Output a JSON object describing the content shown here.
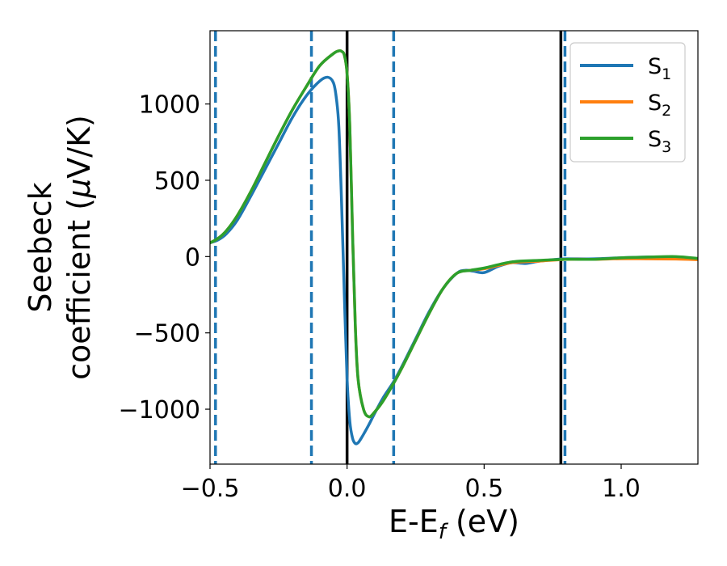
{
  "chart_data": {
    "type": "line",
    "xlabel": {
      "main": "E-E",
      "sub": "f",
      "unit": " (eV)"
    },
    "ylabel": {
      "line1": "Seebeck",
      "line2_prefix": "coefficient  (",
      "mu": "μ",
      "line2_suffix": "V/K)"
    },
    "xlim": [
      -0.5,
      1.28
    ],
    "ylim": [
      -1360,
      1480
    ],
    "xticks": [
      -0.5,
      0.0,
      0.5,
      1.0
    ],
    "xtick_labels": [
      "−0.5",
      "0.0",
      "0.5",
      "1.0"
    ],
    "yticks": [
      -1000,
      -500,
      0,
      500,
      1000
    ],
    "ytick_labels": [
      "−1000",
      "−500",
      "0",
      "500",
      "1000"
    ],
    "legend_position": "top-right",
    "vlines_solid": [
      0.0,
      0.78
    ],
    "vlines_dashed": [
      -0.48,
      -0.13,
      0.17,
      0.795
    ],
    "colors": {
      "S1": "#1f77b4",
      "S2": "#ff7f0e",
      "S3": "#2ca02c",
      "vline_solid": "#000000",
      "vline_dashed": "#1f77b4"
    },
    "series": [
      {
        "name": "S1",
        "label_base": "S",
        "label_sub": "1",
        "color": "#1f77b4",
        "x": [
          -0.5,
          -0.47,
          -0.44,
          -0.4,
          -0.35,
          -0.3,
          -0.25,
          -0.2,
          -0.15,
          -0.1,
          -0.07,
          -0.05,
          -0.04,
          -0.03,
          -0.02,
          -0.01,
          0.0,
          0.01,
          0.02,
          0.03,
          0.04,
          0.05,
          0.06,
          0.08,
          0.1,
          0.13,
          0.17,
          0.2,
          0.25,
          0.3,
          0.35,
          0.4,
          0.43,
          0.46,
          0.5,
          0.55,
          0.6,
          0.65,
          0.7,
          0.75,
          0.8,
          0.9,
          1.0,
          1.1,
          1.2,
          1.28
        ],
        "y": [
          90,
          110,
          150,
          240,
          400,
          570,
          740,
          910,
          1050,
          1150,
          1175,
          1140,
          1050,
          850,
          350,
          -250,
          -800,
          -1080,
          -1190,
          -1225,
          -1220,
          -1195,
          -1165,
          -1100,
          -1030,
          -930,
          -820,
          -720,
          -540,
          -360,
          -210,
          -110,
          -90,
          -95,
          -105,
          -65,
          -40,
          -45,
          -30,
          -20,
          -15,
          -15,
          -8,
          -3,
          -3,
          -15
        ]
      },
      {
        "name": "S2",
        "label_base": "S",
        "label_sub": "2",
        "color": "#ff7f0e",
        "x": [
          -0.5,
          -0.47,
          -0.44,
          -0.4,
          -0.35,
          -0.3,
          -0.25,
          -0.2,
          -0.15,
          -0.1,
          -0.05,
          -0.03,
          -0.02,
          -0.01,
          0.0,
          0.01,
          0.02,
          0.03,
          0.04,
          0.06,
          0.08,
          0.1,
          0.13,
          0.17,
          0.2,
          0.25,
          0.3,
          0.35,
          0.4,
          0.45,
          0.5,
          0.6,
          0.7,
          0.8,
          0.9,
          1.0,
          1.1,
          1.2,
          1.28
        ],
        "y": [
          90,
          120,
          170,
          270,
          430,
          610,
          790,
          960,
          1110,
          1250,
          1330,
          1348,
          1345,
          1320,
          1200,
          850,
          150,
          -450,
          -800,
          -1000,
          -1050,
          -1020,
          -950,
          -830,
          -730,
          -550,
          -370,
          -210,
          -110,
          -90,
          -80,
          -40,
          -30,
          -18,
          -18,
          -14,
          -15,
          -16,
          -20
        ]
      },
      {
        "name": "S3",
        "label_base": "S",
        "label_sub": "3",
        "color": "#2ca02c",
        "x": [
          -0.5,
          -0.47,
          -0.44,
          -0.4,
          -0.35,
          -0.3,
          -0.25,
          -0.2,
          -0.15,
          -0.1,
          -0.05,
          -0.03,
          -0.02,
          -0.01,
          0.0,
          0.01,
          0.02,
          0.03,
          0.04,
          0.06,
          0.08,
          0.1,
          0.13,
          0.17,
          0.2,
          0.25,
          0.3,
          0.35,
          0.4,
          0.45,
          0.5,
          0.6,
          0.7,
          0.8,
          0.9,
          1.0,
          1.1,
          1.2,
          1.28
        ],
        "y": [
          90,
          120,
          170,
          270,
          430,
          610,
          790,
          960,
          1110,
          1250,
          1330,
          1348,
          1345,
          1320,
          1200,
          850,
          150,
          -450,
          -800,
          -1000,
          -1050,
          -1020,
          -950,
          -830,
          -730,
          -550,
          -370,
          -210,
          -110,
          -90,
          -75,
          -35,
          -25,
          -18,
          -18,
          -8,
          -3,
          0,
          -12
        ]
      }
    ]
  }
}
